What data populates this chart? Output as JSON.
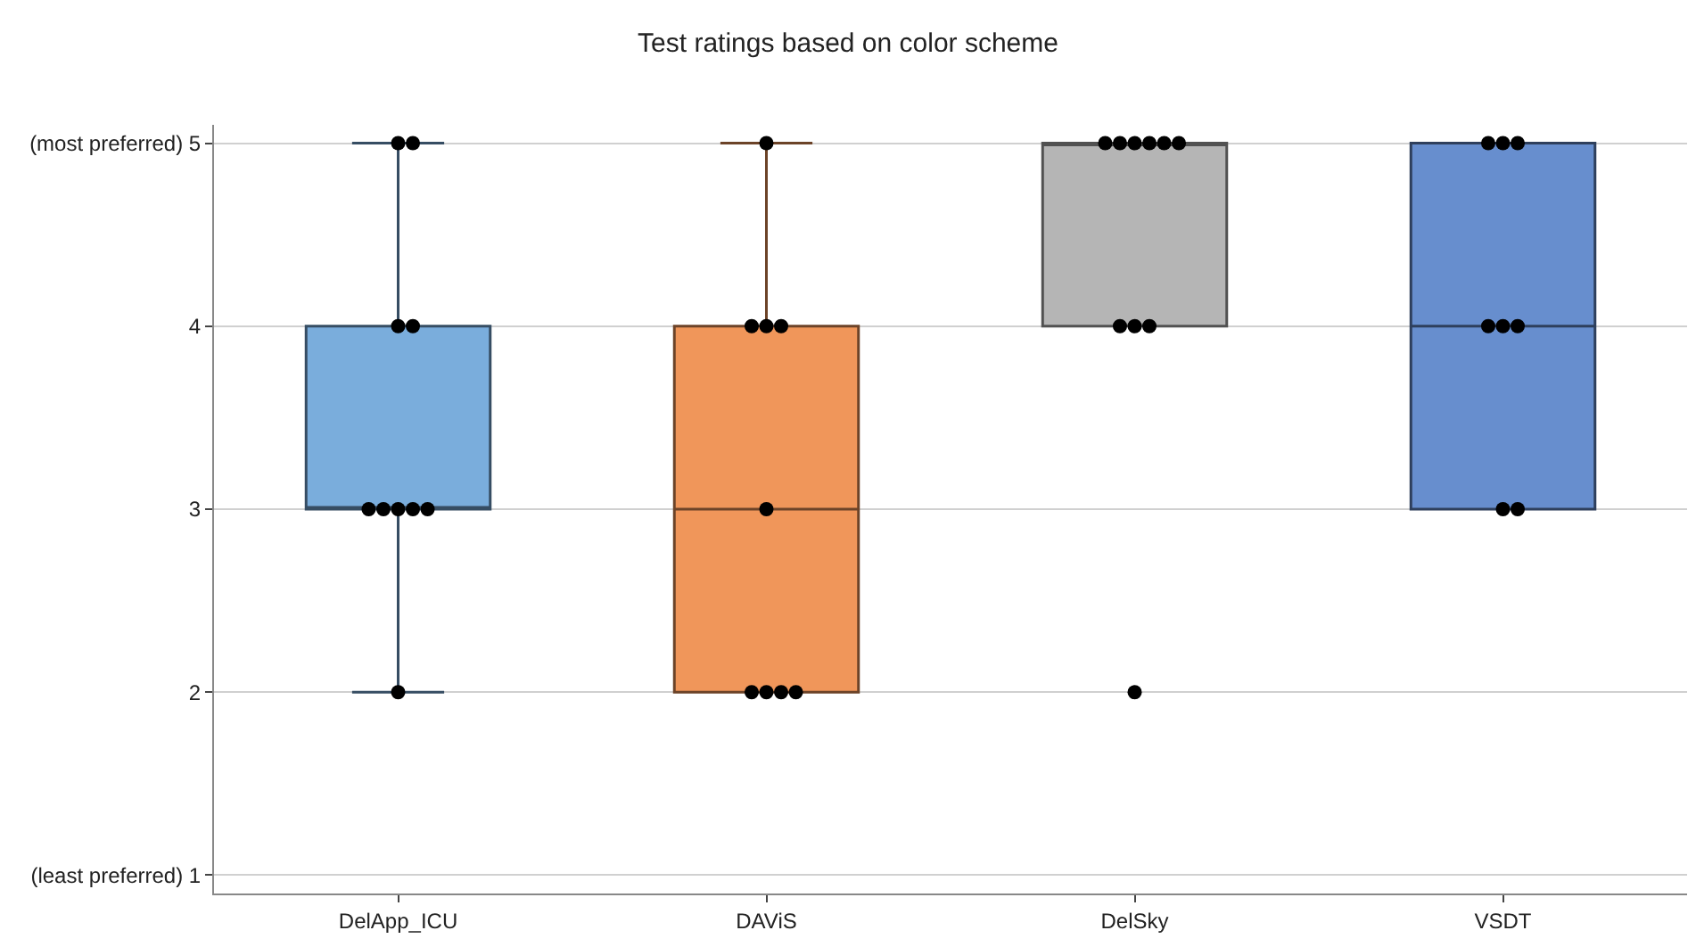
{
  "chart_data": {
    "type": "box",
    "title": "Test ratings based on color scheme",
    "categories": [
      "DelApp_ICU",
      "DAViS",
      "DelSky",
      "VSDT"
    ],
    "colors": [
      "#7aaddc",
      "#f0965a",
      "#b5b5b5",
      "#678ece"
    ],
    "boxes": [
      {
        "low": 2,
        "q1": 3,
        "median": 3,
        "q3": 4,
        "high": 5
      },
      {
        "low": 2,
        "q1": 2,
        "median": 3,
        "q3": 4,
        "high": 5
      },
      {
        "low": 4,
        "q1": 4,
        "median": 5,
        "q3": 5,
        "high": 5
      },
      {
        "low": 3,
        "q1": 3,
        "median": 4,
        "q3": 5,
        "high": 5
      }
    ],
    "series": [
      {
        "type": "scatter",
        "color": "#000000",
        "x": [
          "DelApp_ICU",
          "DelApp_ICU",
          "DelApp_ICU",
          "DelApp_ICU",
          "DelApp_ICU",
          "DelApp_ICU",
          "DelApp_ICU",
          "DelApp_ICU",
          "DelApp_ICU",
          "DelApp_ICU",
          "DAViS",
          "DAViS",
          "DAViS",
          "DAViS",
          "DAViS",
          "DAViS",
          "DAViS",
          "DAViS",
          "DAViS",
          "DelSky",
          "DelSky",
          "DelSky",
          "DelSky",
          "DelSky",
          "DelSky",
          "DelSky",
          "DelSky",
          "DelSky",
          "DelSky",
          "VSDT",
          "VSDT",
          "VSDT",
          "VSDT",
          "VSDT",
          "VSDT",
          "VSDT",
          "VSDT"
        ],
        "values": [
          5,
          5,
          4,
          4,
          3,
          3,
          3,
          3,
          3,
          2,
          5,
          4,
          4,
          4,
          3,
          2,
          2,
          2,
          2,
          5,
          5,
          5,
          5,
          5,
          5,
          4,
          4,
          4,
          2,
          5,
          5,
          5,
          4,
          4,
          4,
          3,
          3
        ]
      }
    ],
    "ylim": [
      0.9,
      5.1
    ],
    "yticks": [
      {
        "value": 1,
        "label": "(least preferred) 1"
      },
      2,
      3,
      4,
      {
        "value": 5,
        "label": "(most preferred) 5"
      }
    ],
    "grid": "y",
    "marker": "circle"
  }
}
